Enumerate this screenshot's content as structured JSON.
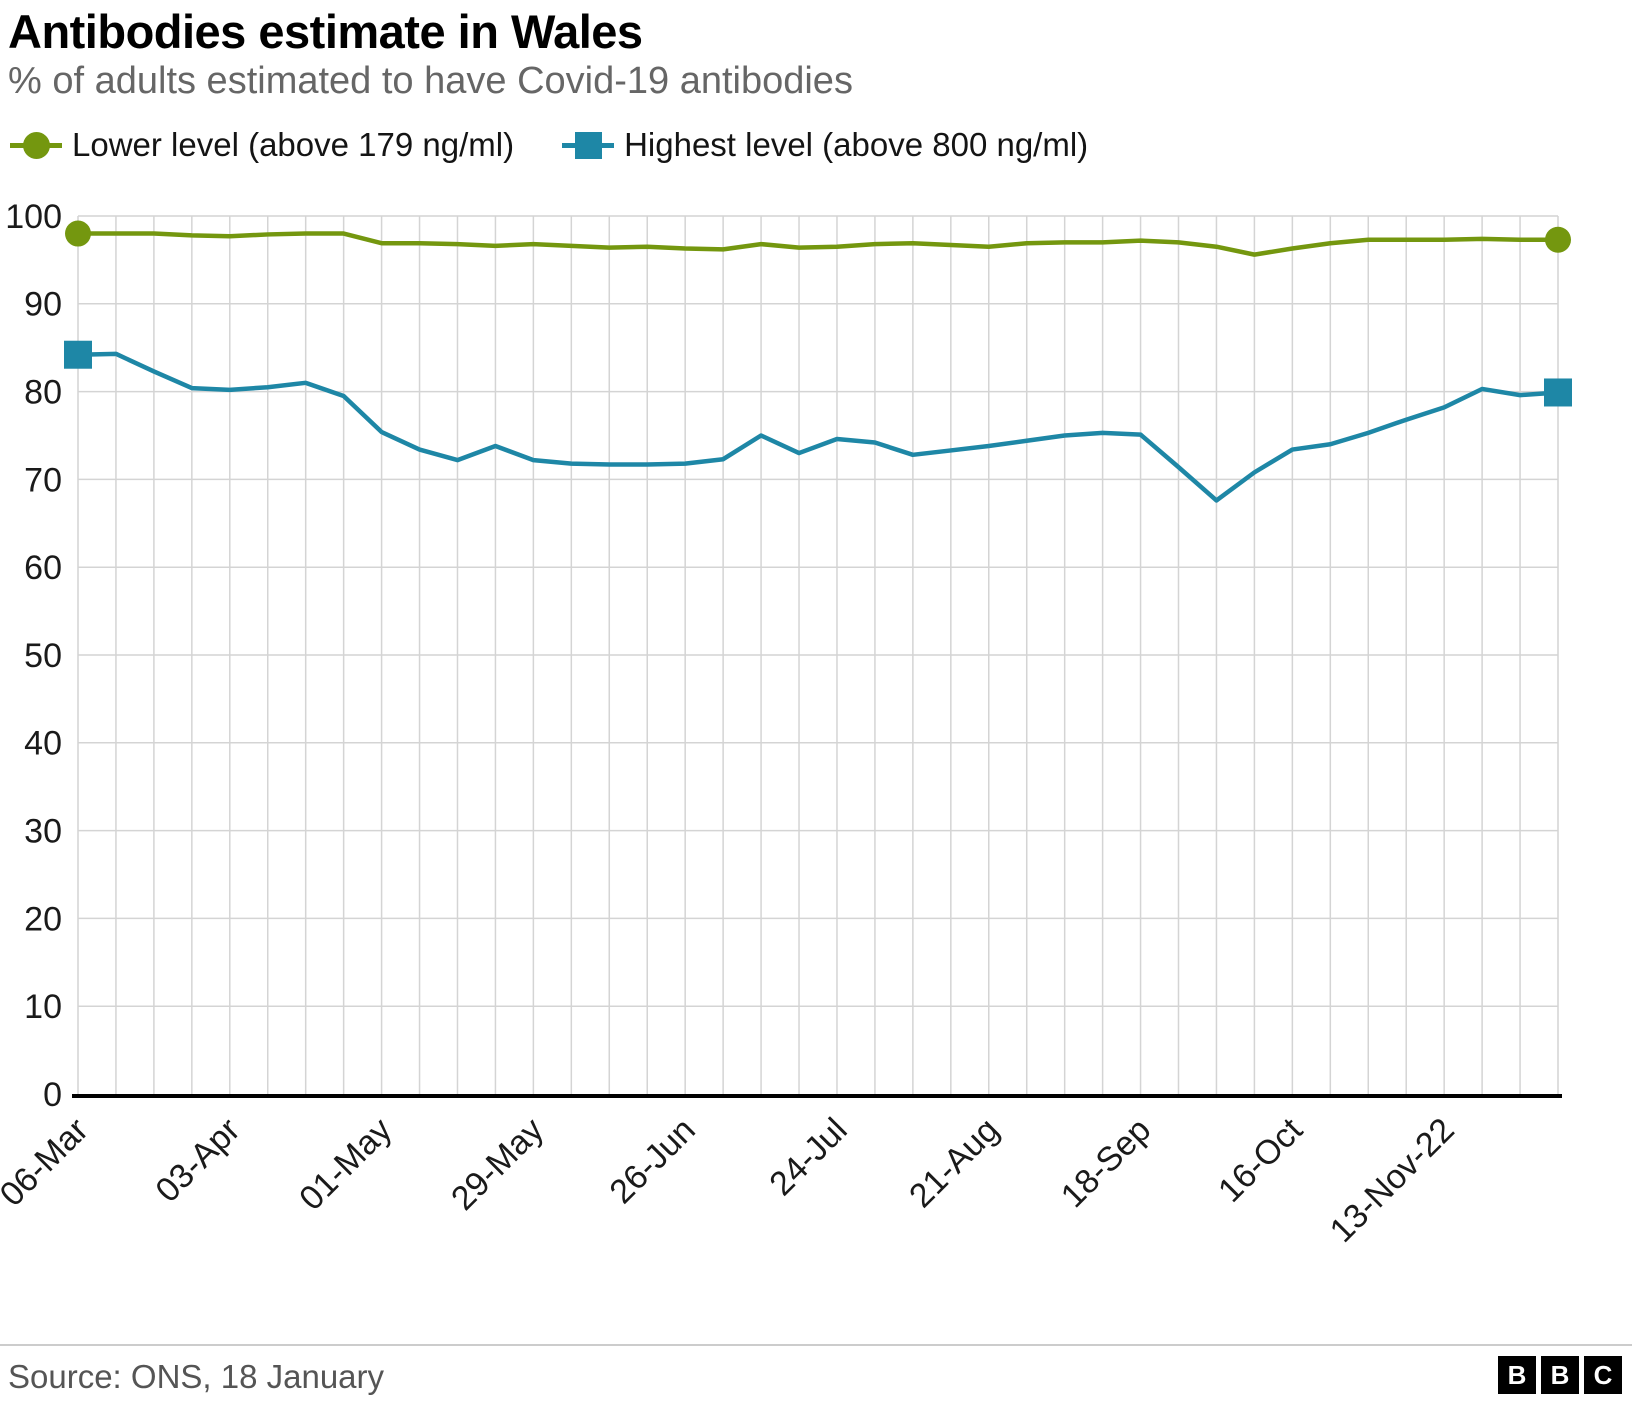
{
  "chart_data": {
    "type": "line",
    "title": "Antibodies estimate in Wales",
    "subtitle": "% of adults estimated to have Covid-19 antibodies",
    "xlabel": "",
    "ylabel": "",
    "ylim": [
      0,
      100
    ],
    "y_ticks": [
      0,
      10,
      20,
      30,
      40,
      50,
      60,
      70,
      80,
      90,
      100
    ],
    "grid": true,
    "grid_color": "#d4d4d4",
    "legend_position": "top",
    "x": [
      "06-Mar",
      "13-Mar",
      "20-Mar",
      "27-Mar",
      "03-Apr",
      "10-Apr",
      "17-Apr",
      "24-Apr",
      "01-May",
      "08-May",
      "15-May",
      "22-May",
      "29-May",
      "05-Jun",
      "12-Jun",
      "19-Jun",
      "26-Jun",
      "03-Jul",
      "10-Jul",
      "17-Jul",
      "24-Jul",
      "31-Jul",
      "07-Aug",
      "14-Aug",
      "21-Aug",
      "28-Aug",
      "04-Sep",
      "11-Sep",
      "18-Sep",
      "25-Sep",
      "02-Oct",
      "09-Oct",
      "16-Oct",
      "23-Oct",
      "30-Oct",
      "06-Nov",
      "13-Nov",
      "20-Nov",
      "27-Nov",
      "04-Dec"
    ],
    "x_ticks": {
      "indices": [
        0,
        4,
        8,
        12,
        16,
        20,
        24,
        28,
        32,
        36
      ],
      "labels": [
        "06-Mar",
        "03-Apr",
        "01-May",
        "29-May",
        "26-Jun",
        "24-Jul",
        "21-Aug",
        "18-Sep",
        "16-Oct",
        "13-Nov-22"
      ]
    },
    "series": [
      {
        "name": "Lower level (above 179 ng/ml)",
        "color": "#74970f",
        "marker": "circle",
        "values": [
          98.0,
          98.0,
          98.0,
          97.8,
          97.7,
          97.9,
          98.0,
          98.0,
          96.9,
          96.9,
          96.8,
          96.6,
          96.8,
          96.6,
          96.4,
          96.5,
          96.3,
          96.2,
          96.8,
          96.4,
          96.5,
          96.8,
          96.9,
          96.7,
          96.5,
          96.9,
          97.0,
          97.0,
          97.2,
          97.0,
          96.5,
          95.6,
          96.3,
          96.9,
          97.3,
          97.3,
          97.3,
          97.4,
          97.3,
          97.3
        ]
      },
      {
        "name": "Highest level (above 800 ng/ml)",
        "color": "#1e87a6",
        "marker": "square",
        "values": [
          84.2,
          84.3,
          82.3,
          80.4,
          80.2,
          80.5,
          81.0,
          79.5,
          75.4,
          73.4,
          72.2,
          73.8,
          72.2,
          71.8,
          71.7,
          71.7,
          71.8,
          72.3,
          75.0,
          73.0,
          74.6,
          74.2,
          72.8,
          73.3,
          73.8,
          74.4,
          75.0,
          75.3,
          75.1,
          71.4,
          67.6,
          70.8,
          73.4,
          74.0,
          75.3,
          76.8,
          78.2,
          80.3,
          79.6,
          79.9
        ]
      }
    ]
  },
  "footer": {
    "source": "Source: ONS, 18 January",
    "bbc": [
      "B",
      "B",
      "C"
    ]
  }
}
